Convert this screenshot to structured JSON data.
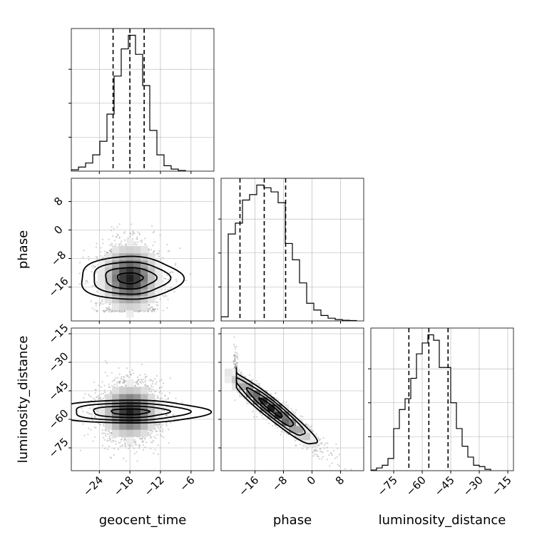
{
  "colors": {
    "ink": "#000000",
    "grid": "#b0b0b0",
    "scatter": "#9a9a9a",
    "background": "#ffffff"
  },
  "chart_data": {
    "type": "corner",
    "parameters": [
      "geocent_time",
      "phase",
      "luminosity_distance"
    ],
    "axis_labels": {
      "geocent_time": "geocent_time",
      "phase": "phase",
      "luminosity_distance": "luminosity_distance"
    },
    "ranges": {
      "geocent_time": [
        -29.5,
        -1.5
      ],
      "phase": [
        -25.5,
        14.5
      ],
      "luminosity_distance": [
        -87,
        -12
      ]
    },
    "ticks": {
      "geocent_time": [
        "-24",
        "-18",
        "-12",
        "-6"
      ],
      "phase": [
        "-16",
        "-8",
        "0",
        "8"
      ],
      "luminosity_distance": [
        "-75",
        "-60",
        "-45",
        "-30",
        "-15"
      ]
    },
    "quantiles": {
      "geocent_time": [
        -21.3,
        -18.0,
        -15.2
      ],
      "phase": [
        -20.2,
        -13.4,
        -7.4
      ],
      "luminosity_distance": [
        -67.0,
        -56.5,
        -46.4
      ]
    },
    "grid": true,
    "histograms": {
      "geocent_time": {
        "edges": [
          -29.5,
          -28.1,
          -26.7,
          -25.3,
          -23.9,
          -22.5,
          -21.1,
          -19.7,
          -18.3,
          -16.9,
          -15.5,
          -14.1,
          -12.7,
          -11.3,
          -9.9,
          -8.5,
          -7.1
        ],
        "counts": [
          0.01,
          0.03,
          0.06,
          0.12,
          0.22,
          0.42,
          0.7,
          0.9,
          1.0,
          0.86,
          0.63,
          0.3,
          0.12,
          0.04,
          0.015,
          0.005
        ]
      },
      "phase": {
        "edges": [
          -25.5,
          -23.5,
          -21.5,
          -19.5,
          -17.5,
          -15.5,
          -13.5,
          -11.5,
          -9.5,
          -7.5,
          -5.5,
          -3.5,
          -1.5,
          0.5,
          2.5,
          4.5,
          6.5,
          8.5,
          10.5,
          12.5
        ],
        "counts": [
          0.03,
          0.64,
          0.72,
          0.89,
          0.93,
          1.0,
          0.98,
          0.95,
          0.87,
          0.57,
          0.45,
          0.28,
          0.13,
          0.08,
          0.04,
          0.02,
          0.01,
          0.005,
          0.003
        ]
      },
      "luminosity_distance": {
        "edges": [
          -87,
          -84,
          -81,
          -78,
          -75,
          -72,
          -69,
          -66,
          -63,
          -60,
          -57,
          -54,
          -51,
          -48,
          -45,
          -42,
          -39,
          -36,
          -33,
          -30,
          -27,
          -24
        ],
        "counts": [
          0.005,
          0.02,
          0.04,
          0.09,
          0.31,
          0.45,
          0.53,
          0.68,
          0.86,
          0.94,
          1.0,
          0.96,
          0.76,
          0.76,
          0.5,
          0.31,
          0.18,
          0.1,
          0.04,
          0.03,
          0.01
        ]
      }
    },
    "pairs": [
      {
        "x": "geocent_time",
        "y": "phase",
        "mean": [
          -18.0,
          -13.5
        ],
        "sd": [
          3.0,
          5.0
        ],
        "rho": 0.0,
        "y_floor": -23.0,
        "contour_levels": [
          "0.5",
          "1",
          "1.5",
          "2"
        ],
        "n_points": 2200
      },
      {
        "x": "geocent_time",
        "y": "luminosity_distance",
        "mean": [
          -18.0,
          -56.0
        ],
        "sd": [
          3.0,
          7.5
        ],
        "rho": 0.0,
        "contour_levels": [
          "0.5",
          "1",
          "1.5",
          "2"
        ],
        "n_points": 2200
      },
      {
        "x": "phase",
        "y": "luminosity_distance",
        "mean": [
          -11.5,
          -54.0
        ],
        "sd": [
          6.5,
          10.0
        ],
        "rho": -0.95,
        "x_floor": -22.0,
        "contour_levels": [
          "0.5",
          "1",
          "1.5",
          "2"
        ],
        "n_points": 1600
      }
    ]
  }
}
